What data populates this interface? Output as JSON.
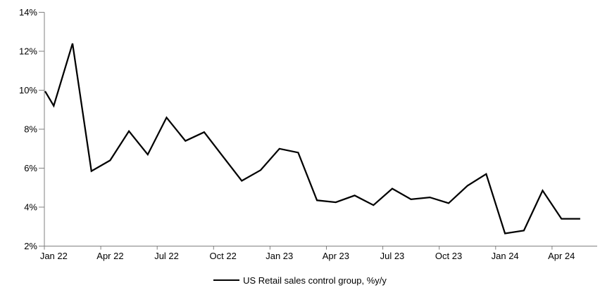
{
  "chart": {
    "legend": {
      "label": "US Retail sales control group, %y/y"
    }
  },
  "chart_data": {
    "type": "line",
    "title": "",
    "categories": [
      "Jan 22",
      "Feb 22",
      "Mar 22",
      "Apr 22",
      "May 22",
      "Jun 22",
      "Jul 22",
      "Aug 22",
      "Sep 22",
      "Oct 22",
      "Nov 22",
      "Dec 22",
      "Jan 23",
      "Feb 23",
      "Mar 23",
      "Apr 23",
      "May 23",
      "Jun 23",
      "Jul 23",
      "Aug 23",
      "Sep 23",
      "Oct 23",
      "Nov 23",
      "Dec 23",
      "Jan 24",
      "Feb 24",
      "Mar 24",
      "Apr 24",
      "May 24"
    ],
    "series": [
      {
        "name": "US Retail sales control group, %y/y",
        "color": "#000000",
        "values": [
          9.2,
          12.4,
          5.85,
          6.4,
          7.9,
          6.7,
          8.6,
          7.4,
          7.85,
          6.6,
          5.35,
          5.9,
          7.0,
          6.8,
          4.35,
          4.25,
          4.6,
          4.1,
          4.95,
          4.4,
          4.5,
          4.2,
          5.1,
          5.7,
          2.65,
          2.8,
          4.85,
          3.4,
          3.4
        ]
      }
    ],
    "left_axis_entry_value": 9.95,
    "x_tick_labels": [
      "Jan 22",
      "Apr 22",
      "Jul 22",
      "Oct 22",
      "Jan 23",
      "Apr 23",
      "Jul 23",
      "Oct 23",
      "Jan 24",
      "Apr 24"
    ],
    "x_label_interval_months": 3,
    "y_tick_labels": [
      "2%",
      "4%",
      "6%",
      "8%",
      "10%",
      "12%",
      "14%"
    ],
    "ylim": [
      2,
      14
    ],
    "grid": false,
    "legend_position": "bottom",
    "axis_color": "#808080",
    "text_color": "#000000"
  }
}
